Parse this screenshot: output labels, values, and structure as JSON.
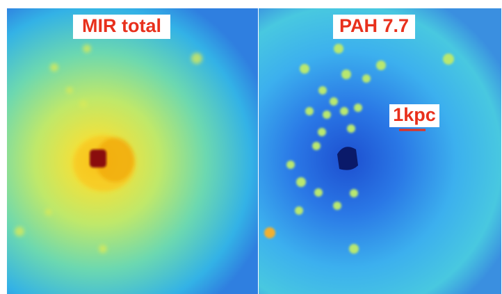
{
  "panels": [
    {
      "label": "MIR total"
    },
    {
      "label": "PAH 7.7"
    }
  ],
  "scale_bar": {
    "label": "1kpc"
  }
}
